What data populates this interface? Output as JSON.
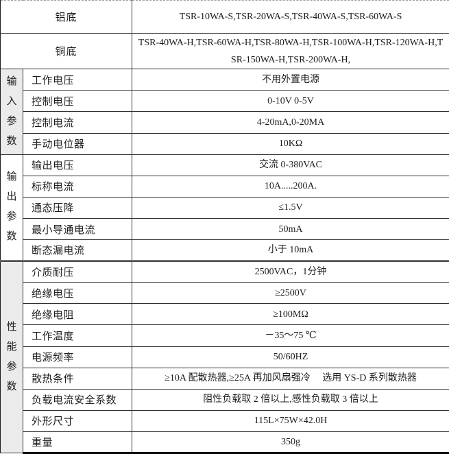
{
  "table": {
    "base_rows": [
      {
        "label": "铝底",
        "models": "TSR-10WA-S,TSR-20WA-S,TSR-40WA-S,TSR-60WA-S"
      },
      {
        "label": "铜底",
        "models": "TSR-40WA-H,TSR-60WA-H,TSR-80WA-H,TSR-100WA-H,TSR-120WA-H,TSR-150WA-H,TSR-200WA-H,"
      }
    ],
    "sections": [
      {
        "group": "输入参数",
        "rows": [
          {
            "label": "工作电压",
            "value": "不用外置电源"
          },
          {
            "label": "控制电压",
            "value": "0-10V 0-5V"
          },
          {
            "label": "控制电流",
            "value": "4-20mA,0-20MA"
          },
          {
            "label": "手动电位器",
            "value": "10KΩ"
          }
        ]
      },
      {
        "group": "输出参数",
        "rows": [
          {
            "label": "输出电压",
            "value": "交流 0-380VAC"
          },
          {
            "label": "标称电流",
            "value": "10A.....200A."
          },
          {
            "label": "通态压降",
            "value": "≤1.5V"
          },
          {
            "label": "最小导通电流",
            "value": "50mA"
          },
          {
            "label": "断态漏电流",
            "value": "小于 10mA"
          }
        ]
      },
      {
        "group": "性能参数",
        "rows": [
          {
            "label": "介质耐压",
            "value": "2500VAC，1分钟"
          },
          {
            "label": "绝缘电压",
            "value": "≥2500V"
          },
          {
            "label": "绝缘电阻",
            "value": "≥100MΩ"
          },
          {
            "label": "工作温度",
            "value": "－35～75 ℃"
          },
          {
            "label": "电源频率",
            "value": "50/60HZ"
          },
          {
            "label": "散热条件",
            "value": "≥10A 配散热器,≥25A 再加风扇强冷　 选用 YS-D 系列散热器"
          },
          {
            "label": "负载电流安全系数",
            "value": "阻性负载取 2 倍以上,感性负载取 3 倍以上"
          },
          {
            "label": "外形尺寸",
            "value": "115L×75W×42.0H"
          },
          {
            "label": "重量",
            "value": "350g"
          }
        ]
      }
    ]
  },
  "colors": {
    "group_cell_bg": "#ebebeb",
    "grid_border": "#2e2e2e",
    "top_border_dashed": "#9a9a9a",
    "text": "#1c1c1c"
  }
}
